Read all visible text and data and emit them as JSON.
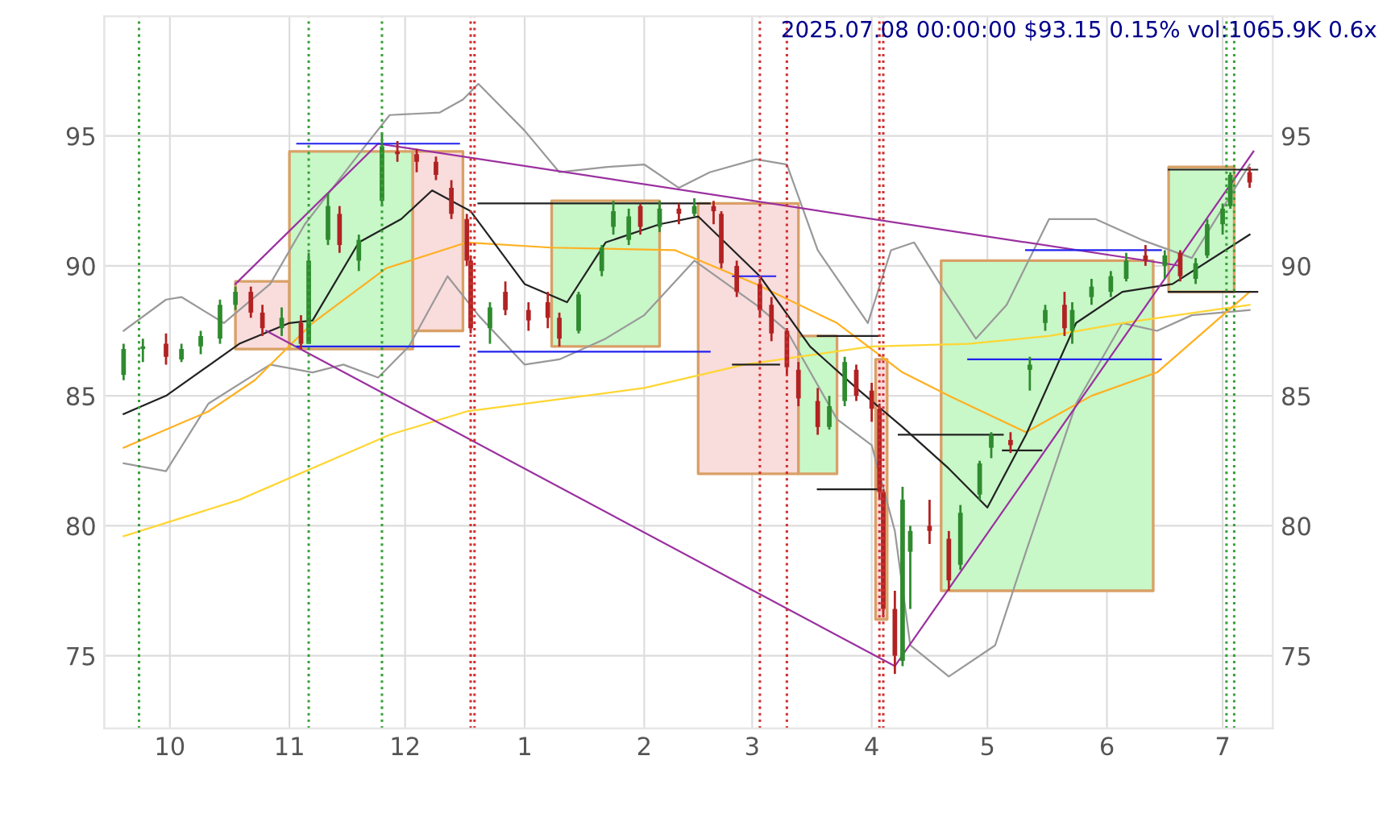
{
  "chart_data": {
    "type": "candlestick",
    "title": "2025.07.08 00:00:00 $93.15 0.15% vol:1065.9K 0.6x",
    "x": [
      "2024-09-19",
      "2024-09-24",
      "2024-09-30",
      "2024-10-04",
      "2024-10-09",
      "2024-10-14",
      "2024-10-18",
      "2024-10-22",
      "2024-10-25",
      "2024-10-30",
      "2024-11-04",
      "2024-11-06",
      "2024-11-11",
      "2024-11-14",
      "2024-11-19",
      "2024-11-25",
      "2024-11-29",
      "2024-12-04",
      "2024-12-09",
      "2024-12-13",
      "2024-12-17",
      "2024-12-18",
      "2024-12-23",
      "2024-12-27",
      "2025-01-02",
      "2025-01-07",
      "2025-01-10",
      "2025-01-15",
      "2025-01-21",
      "2025-01-24",
      "2025-01-28",
      "2025-01-31",
      "2025-02-05",
      "2025-02-10",
      "2025-02-14",
      "2025-02-19",
      "2025-02-21",
      "2025-02-25",
      "2025-03-03",
      "2025-03-06",
      "2025-03-10",
      "2025-03-13",
      "2025-03-18",
      "2025-03-21",
      "2025-03-25",
      "2025-03-28",
      "2025-04-01",
      "2025-04-03",
      "2025-04-04",
      "2025-04-07",
      "2025-04-09",
      "2025-04-11",
      "2025-04-16",
      "2025-04-21",
      "2025-04-24",
      "2025-04-29",
      "2025-05-02",
      "2025-05-07",
      "2025-05-12",
      "2025-05-16",
      "2025-05-21",
      "2025-05-23",
      "2025-05-28",
      "2025-06-02",
      "2025-06-06",
      "2025-06-11",
      "2025-06-16",
      "2025-06-20",
      "2025-06-24",
      "2025-06-27",
      "2025-07-01",
      "2025-07-03",
      "2025-07-08"
    ],
    "ohlc": [
      [
        85.8,
        87.0,
        85.6,
        86.8
      ],
      [
        86.8,
        87.2,
        86.3,
        86.9
      ],
      [
        87.0,
        87.4,
        86.2,
        86.5
      ],
      [
        86.4,
        87.0,
        86.3,
        86.8
      ],
      [
        86.9,
        87.5,
        86.6,
        87.3
      ],
      [
        87.2,
        88.7,
        87.0,
        88.5
      ],
      [
        88.5,
        89.2,
        88.3,
        89.0
      ],
      [
        89.0,
        89.2,
        88.0,
        88.2
      ],
      [
        88.2,
        88.5,
        87.3,
        87.6
      ],
      [
        87.6,
        88.4,
        87.3,
        88.0
      ],
      [
        87.8,
        88.1,
        86.8,
        87.0
      ],
      [
        87.0,
        90.5,
        87.0,
        90.2
      ],
      [
        91.0,
        92.8,
        90.8,
        92.3
      ],
      [
        92.0,
        92.3,
        90.5,
        90.8
      ],
      [
        90.2,
        91.2,
        89.8,
        91.0
      ],
      [
        92.5,
        95.1,
        92.3,
        94.6
      ],
      [
        94.4,
        94.8,
        94.0,
        94.3
      ],
      [
        94.3,
        94.5,
        93.6,
        94.0
      ],
      [
        94.0,
        94.2,
        93.3,
        93.5
      ],
      [
        93.0,
        93.3,
        91.8,
        92.0
      ],
      [
        91.8,
        92.0,
        90.0,
        90.2
      ],
      [
        90.2,
        90.4,
        87.4,
        87.6
      ],
      [
        87.6,
        88.6,
        87.0,
        88.4
      ],
      [
        89.0,
        89.4,
        88.1,
        88.3
      ],
      [
        88.3,
        88.6,
        87.5,
        87.9
      ],
      [
        88.6,
        89.0,
        87.6,
        88.0
      ],
      [
        88.0,
        88.2,
        86.9,
        87.2
      ],
      [
        87.5,
        89.0,
        87.4,
        88.9
      ],
      [
        89.8,
        90.8,
        89.6,
        90.7
      ],
      [
        91.5,
        92.5,
        91.2,
        92.1
      ],
      [
        91.0,
        92.2,
        90.8,
        91.9
      ],
      [
        92.3,
        92.4,
        91.2,
        91.5
      ],
      [
        91.5,
        92.5,
        91.3,
        92.2
      ],
      [
        92.2,
        92.4,
        91.6,
        92.0
      ],
      [
        92.0,
        92.6,
        91.9,
        92.3
      ],
      [
        92.3,
        92.5,
        91.6,
        92.1
      ],
      [
        92.0,
        92.1,
        89.9,
        90.1
      ],
      [
        90.0,
        90.2,
        88.8,
        89.0
      ],
      [
        89.3,
        89.5,
        88.0,
        88.3
      ],
      [
        88.5,
        88.8,
        87.1,
        87.4
      ],
      [
        87.5,
        87.6,
        85.8,
        86.1
      ],
      [
        86.0,
        86.3,
        84.6,
        84.9
      ],
      [
        84.8,
        85.3,
        83.5,
        83.8
      ],
      [
        83.8,
        85.0,
        83.7,
        84.6
      ],
      [
        84.8,
        86.5,
        84.6,
        86.3
      ],
      [
        86.0,
        86.2,
        84.8,
        85.0
      ],
      [
        85.2,
        85.5,
        84.0,
        84.5
      ],
      [
        84.5,
        84.7,
        81.0,
        81.3
      ],
      [
        81.3,
        81.4,
        76.5,
        76.8
      ],
      [
        76.8,
        77.5,
        74.3,
        75.0
      ],
      [
        74.8,
        81.5,
        74.6,
        81.0
      ],
      [
        79.0,
        80.0,
        76.8,
        79.8
      ],
      [
        80.0,
        81.0,
        79.3,
        79.8
      ],
      [
        79.5,
        79.8,
        77.5,
        77.9
      ],
      [
        78.5,
        80.8,
        78.3,
        80.5
      ],
      [
        81.2,
        82.5,
        81.0,
        82.4
      ],
      [
        83.0,
        83.6,
        82.6,
        83.5
      ],
      [
        83.3,
        83.6,
        82.8,
        83.1
      ],
      [
        86.0,
        86.5,
        85.2,
        86.2
      ],
      [
        87.8,
        88.5,
        87.5,
        88.3
      ],
      [
        88.5,
        89.0,
        87.3,
        87.6
      ],
      [
        87.5,
        88.6,
        87.0,
        88.3
      ],
      [
        88.8,
        89.5,
        88.5,
        89.2
      ],
      [
        89.0,
        89.8,
        88.8,
        89.6
      ],
      [
        89.5,
        90.5,
        89.4,
        90.2
      ],
      [
        90.4,
        90.8,
        90.0,
        90.2
      ],
      [
        90.0,
        90.6,
        89.5,
        90.4
      ],
      [
        90.5,
        90.6,
        89.4,
        89.6
      ],
      [
        89.5,
        90.3,
        89.3,
        90.1
      ],
      [
        90.4,
        91.8,
        90.3,
        91.6
      ],
      [
        91.6,
        92.4,
        91.2,
        92.2
      ],
      [
        92.3,
        93.6,
        92.2,
        93.5
      ],
      [
        93.6,
        93.8,
        93.0,
        93.2
      ]
    ],
    "series": [
      {
        "type": "area",
        "color": "#f9dcdc",
        "x": [
          "2024-10-18",
          "2024-11-01"
        ],
        "lower": [
          86.8,
          86.8
        ],
        "upper": [
          89.4,
          89.4
        ],
        "values": [
          null,
          null
        ]
      },
      {
        "type": "area",
        "color": "#c8f7c8",
        "x": [
          "2024-11-01",
          "2024-12-03"
        ],
        "lower": [
          86.8,
          86.8
        ],
        "upper": [
          94.4,
          94.4
        ],
        "values": [
          null,
          null
        ]
      },
      {
        "type": "area",
        "color": "#f9dcdc",
        "x": [
          "2024-12-03",
          "2024-12-16"
        ],
        "lower": [
          87.5,
          87.5
        ],
        "upper": [
          94.4,
          94.4
        ],
        "values": [
          null,
          null
        ]
      },
      {
        "type": "area",
        "color": "#c8f7c8",
        "x": [
          "2025-01-08",
          "2025-02-05"
        ],
        "lower": [
          86.9,
          86.9
        ],
        "upper": [
          92.5,
          92.5
        ],
        "values": [
          null,
          null
        ]
      },
      {
        "type": "area",
        "color": "#f9dcdc",
        "x": [
          "2025-02-15",
          "2025-03-13"
        ],
        "lower": [
          82.0,
          82.0
        ],
        "upper": [
          92.4,
          92.4
        ],
        "values": [
          null,
          null
        ]
      },
      {
        "type": "area",
        "color": "#c8f7c8",
        "x": [
          "2025-03-13",
          "2025-03-23"
        ],
        "lower": [
          82.0,
          82.0
        ],
        "upper": [
          87.3,
          87.3
        ],
        "values": [
          null,
          null
        ]
      },
      {
        "type": "area",
        "color": "#f9dcdc",
        "x": [
          "2025-04-02",
          "2025-04-05"
        ],
        "lower": [
          76.4,
          76.4
        ],
        "upper": [
          86.4,
          86.4
        ],
        "values": [
          null,
          null
        ]
      },
      {
        "type": "area",
        "color": "#c8f7c8",
        "x": [
          "2025-04-19",
          "2025-06-13"
        ],
        "lower": [
          77.5,
          77.5
        ],
        "upper": [
          90.2,
          90.2
        ],
        "values": [
          null,
          null
        ]
      },
      {
        "type": "area",
        "color": "#c8f7c8",
        "x": [
          "2025-06-17",
          "2025-07-04"
        ],
        "lower": [
          89.0,
          89.0
        ],
        "upper": [
          93.8,
          93.8
        ],
        "values": [
          null,
          null
        ]
      },
      {
        "type": "line",
        "color": "#999999",
        "x": [
          "2024-09-19",
          "2024-09-30",
          "2024-10-04",
          "2024-10-15",
          "2024-10-27",
          "2024-11-05",
          "2024-11-19",
          "2024-11-27",
          "2024-12-10",
          "2024-12-16",
          "2024-12-20",
          "2025-01-01",
          "2025-01-10",
          "2025-01-22",
          "2025-02-01",
          "2025-02-10",
          "2025-02-18",
          "2025-03-02",
          "2025-03-10",
          "2025-03-18",
          "2025-03-31",
          "2025-04-06",
          "2025-04-12",
          "2025-04-20",
          "2025-04-28",
          "2025-05-06",
          "2025-05-17",
          "2025-05-29",
          "2025-06-10",
          "2025-06-23",
          "2025-07-08"
        ],
        "values": [
          87.5,
          88.7,
          88.8,
          87.8,
          89.3,
          91.6,
          94.3,
          95.8,
          95.9,
          96.4,
          97.0,
          95.2,
          93.6,
          93.8,
          93.9,
          93.0,
          93.6,
          94.1,
          93.9,
          90.6,
          87.8,
          90.6,
          90.9,
          89.0,
          87.2,
          88.5,
          91.8,
          91.8,
          91.0,
          90.3,
          93.9
        ]
      },
      {
        "type": "line",
        "color": "#999999",
        "x": [
          "2024-09-19",
          "2024-09-30",
          "2024-10-11",
          "2024-10-27",
          "2024-11-07",
          "2024-11-15",
          "2024-11-24",
          "2024-12-02",
          "2024-12-12",
          "2024-12-20",
          "2025-01-01",
          "2025-01-10",
          "2025-01-22",
          "2025-02-01",
          "2025-02-14",
          "2025-03-02",
          "2025-03-10",
          "2025-03-23",
          "2025-04-01",
          "2025-04-07",
          "2025-04-11",
          "2025-04-21",
          "2025-05-03",
          "2025-05-11",
          "2025-05-24",
          "2025-06-05",
          "2025-06-14",
          "2025-06-23",
          "2025-07-08"
        ],
        "values": [
          82.4,
          82.1,
          84.7,
          86.2,
          85.9,
          86.2,
          85.7,
          86.9,
          89.6,
          88.1,
          86.2,
          86.4,
          87.2,
          88.1,
          90.2,
          88.5,
          87.5,
          84.1,
          83.1,
          79.8,
          75.4,
          74.2,
          75.4,
          79.0,
          84.7,
          87.8,
          87.5,
          88.1,
          88.3
        ]
      },
      {
        "type": "line",
        "color": "#ffd633",
        "x": [
          "2024-09-19",
          "2024-10-19",
          "2024-11-27",
          "2024-12-17",
          "2025-02-01",
          "2025-02-27",
          "2025-04-01",
          "2025-04-26",
          "2025-05-17",
          "2025-06-05",
          "2025-07-08"
        ],
        "values": [
          79.6,
          81.0,
          83.5,
          84.4,
          85.3,
          86.2,
          86.9,
          87.0,
          87.3,
          87.8,
          88.5
        ]
      },
      {
        "type": "line",
        "color": "#ffb020",
        "x": [
          "2024-09-19",
          "2024-10-11",
          "2024-10-23",
          "2024-11-07",
          "2024-11-26",
          "2024-12-17",
          "2025-01-08",
          "2025-02-09",
          "2025-03-02",
          "2025-03-23",
          "2025-04-09",
          "2025-04-21",
          "2025-05-11",
          "2025-05-28",
          "2025-06-14",
          "2025-07-08"
        ],
        "values": [
          83.0,
          84.4,
          85.6,
          87.8,
          89.9,
          90.9,
          90.7,
          90.6,
          89.3,
          87.8,
          85.9,
          85.0,
          83.6,
          85.0,
          85.9,
          89.0
        ]
      },
      {
        "type": "line",
        "color": "#222222",
        "x": [
          "2024-09-19",
          "2024-09-30",
          "2024-10-19",
          "2024-11-01",
          "2024-11-07",
          "2024-11-19",
          "2024-11-30",
          "2024-12-08",
          "2024-12-18",
          "2025-01-01",
          "2025-01-12",
          "2025-01-22",
          "2025-02-05",
          "2025-02-15",
          "2025-03-03",
          "2025-03-16",
          "2025-03-28",
          "2025-04-09",
          "2025-04-21",
          "2025-05-01",
          "2025-05-11",
          "2025-05-24",
          "2025-06-05",
          "2025-06-18",
          "2025-07-08"
        ],
        "values": [
          84.3,
          85.0,
          87.0,
          87.8,
          87.9,
          90.9,
          91.8,
          92.9,
          92.1,
          89.3,
          88.6,
          90.9,
          91.6,
          91.9,
          89.6,
          86.9,
          85.3,
          83.8,
          82.2,
          80.7,
          83.5,
          87.8,
          89.0,
          89.3,
          91.2
        ]
      },
      {
        "type": "line",
        "color": "#9b30a0",
        "x": [
          "2024-10-18",
          "2024-11-24"
        ],
        "values": [
          89.3,
          94.7
        ]
      },
      {
        "type": "line",
        "color": "#9b30a0",
        "x": [
          "2024-11-24",
          "2025-06-20"
        ],
        "values": [
          94.7,
          90.0
        ]
      },
      {
        "type": "line",
        "color": "#9b30a0",
        "x": [
          "2024-10-26",
          "2025-04-07"
        ],
        "values": [
          87.5,
          74.6
        ]
      },
      {
        "type": "line",
        "color": "#9b30a0",
        "x": [
          "2025-04-07",
          "2025-07-09"
        ],
        "values": [
          74.6,
          94.4
        ]
      },
      {
        "type": "line",
        "color": "#2222ee",
        "x": [
          "2024-11-03",
          "2024-12-15"
        ],
        "values": [
          94.7,
          94.7
        ]
      },
      {
        "type": "line",
        "color": "#2222ee",
        "x": [
          "2024-11-03",
          "2024-12-15"
        ],
        "values": [
          86.9,
          86.9
        ]
      },
      {
        "type": "line",
        "color": "#222222",
        "x": [
          "2024-12-20",
          "2025-02-18"
        ],
        "values": [
          92.4,
          92.4
        ]
      },
      {
        "type": "line",
        "color": "#2222ee",
        "x": [
          "2024-12-20",
          "2025-02-18"
        ],
        "values": [
          86.7,
          86.7
        ]
      },
      {
        "type": "line",
        "color": "#2222ee",
        "x": [
          "2025-02-24",
          "2025-03-07"
        ],
        "values": [
          89.6,
          89.6
        ]
      },
      {
        "type": "line",
        "color": "#222222",
        "x": [
          "2025-02-24",
          "2025-03-08"
        ],
        "values": [
          86.2,
          86.2
        ]
      },
      {
        "type": "line",
        "color": "#222222",
        "x": [
          "2025-03-18",
          "2025-04-03"
        ],
        "values": [
          87.3,
          87.3
        ]
      },
      {
        "type": "line",
        "color": "#222222",
        "x": [
          "2025-03-18",
          "2025-04-03"
        ],
        "values": [
          81.4,
          81.4
        ]
      },
      {
        "type": "line",
        "color": "#222222",
        "x": [
          "2025-04-08",
          "2025-05-05"
        ],
        "values": [
          83.5,
          83.5
        ]
      },
      {
        "type": "line",
        "color": "#222222",
        "x": [
          "2025-05-05",
          "2025-05-15"
        ],
        "values": [
          82.9,
          82.9
        ]
      },
      {
        "type": "line",
        "color": "#2222ee",
        "x": [
          "2025-04-26",
          "2025-06-15"
        ],
        "values": [
          86.4,
          86.4
        ]
      },
      {
        "type": "line",
        "color": "#2222ee",
        "x": [
          "2025-05-11",
          "2025-06-15"
        ],
        "values": [
          90.6,
          90.6
        ]
      },
      {
        "type": "line",
        "color": "#222222",
        "x": [
          "2025-06-17",
          "2025-07-10"
        ],
        "values": [
          93.7,
          93.7
        ]
      },
      {
        "type": "line",
        "color": "#222222",
        "x": [
          "2025-06-17",
          "2025-07-10"
        ],
        "values": [
          89.0,
          89.0
        ]
      }
    ],
    "ref_lines": [
      {
        "axis": "x",
        "value": "2024-09-23",
        "color": "#3aa03a",
        "line_style": "dotted"
      },
      {
        "axis": "x",
        "value": "2024-11-06",
        "color": "#3aa03a",
        "line_style": "dotted"
      },
      {
        "axis": "x",
        "value": "2024-11-25",
        "color": "#3aa03a",
        "line_style": "dotted"
      },
      {
        "axis": "x",
        "value": "2024-12-18",
        "color": "#d03030",
        "line_style": "dotted"
      },
      {
        "axis": "x",
        "value": "2024-12-19",
        "color": "#d03030",
        "line_style": "dotted"
      },
      {
        "axis": "x",
        "value": "2025-03-03",
        "color": "#d03030",
        "line_style": "dotted"
      },
      {
        "axis": "x",
        "value": "2025-03-10",
        "color": "#d03030",
        "line_style": "dotted"
      },
      {
        "axis": "x",
        "value": "2025-04-03",
        "color": "#d03030",
        "line_style": "dotted"
      },
      {
        "axis": "x",
        "value": "2025-04-04",
        "color": "#d03030",
        "line_style": "dotted"
      },
      {
        "axis": "x",
        "value": "2025-07-02",
        "color": "#3aa03a",
        "line_style": "dotted"
      },
      {
        "axis": "x",
        "value": "2025-07-04",
        "color": "#3aa03a",
        "line_style": "dotted"
      }
    ],
    "xlim": [
      "2024-09-14",
      "2025-07-14"
    ],
    "xticks": [
      {
        "value": "2024-10-01",
        "label": "10"
      },
      {
        "value": "2024-11-01",
        "label": "11"
      },
      {
        "value": "2024-12-01",
        "label": "12"
      },
      {
        "value": "2025-01-01",
        "label": "1"
      },
      {
        "value": "2025-02-01",
        "label": "2"
      },
      {
        "value": "2025-03-01",
        "label": "3"
      },
      {
        "value": "2025-04-01",
        "label": "4"
      },
      {
        "value": "2025-05-01",
        "label": "5"
      },
      {
        "value": "2025-06-01",
        "label": "6"
      },
      {
        "value": "2025-07-01",
        "label": "7"
      }
    ],
    "ylim": [
      72.2,
      99.6
    ],
    "yticks": [
      75,
      80,
      85,
      90,
      95
    ],
    "y2lim": [
      72.2,
      99.6
    ],
    "y2ticks": [
      75,
      80,
      85,
      90,
      95
    ],
    "grid": true,
    "legend": false
  }
}
